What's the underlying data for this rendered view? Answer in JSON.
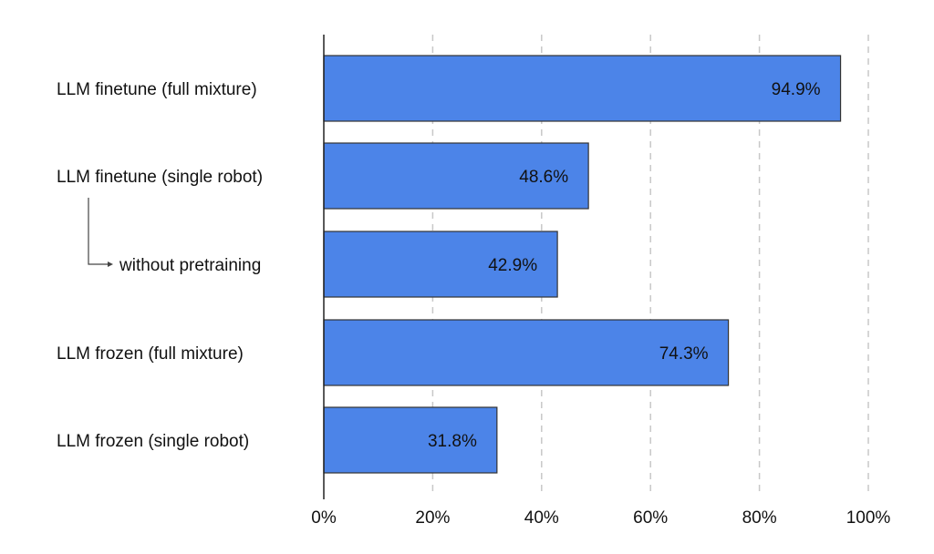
{
  "chart_data": {
    "type": "bar",
    "orientation": "horizontal",
    "categories": [
      "LLM finetune (full mixture)",
      "LLM finetune (single robot)",
      "without pretraining",
      "LLM frozen (full mixture)",
      "LLM frozen (single robot)"
    ],
    "values": [
      94.9,
      48.6,
      42.9,
      74.3,
      31.8
    ],
    "data_labels": [
      "94.9%",
      "48.6%",
      "42.9%",
      "74.3%",
      "31.8%"
    ],
    "sub_category_of": {
      "without pretraining": "LLM finetune (single robot)"
    },
    "xlim": [
      0,
      100
    ],
    "x_ticks": [
      0,
      20,
      40,
      60,
      80,
      100
    ],
    "x_tick_labels": [
      "0%",
      "20%",
      "40%",
      "60%",
      "80%",
      "100%"
    ],
    "grid": "vertical-dashed",
    "bar_color": "#4c84e8",
    "title": "",
    "xlabel": "",
    "ylabel": ""
  }
}
